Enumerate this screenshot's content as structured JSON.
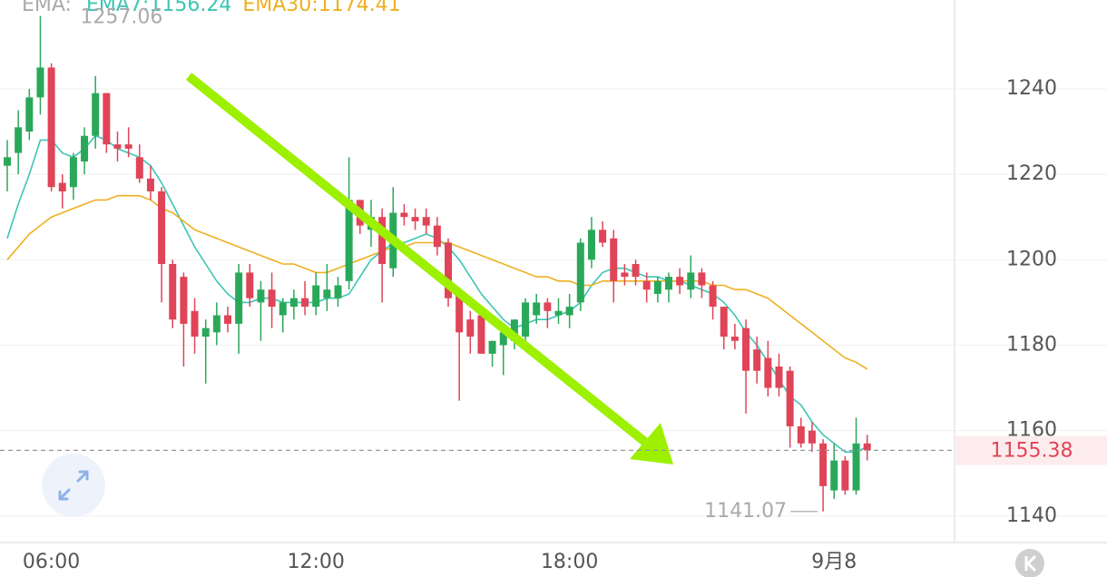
{
  "chart_data": {
    "type": "candlestick",
    "legend_title": "EMA:",
    "legend_separator": ":",
    "categories": [
      null,
      null,
      null,
      null,
      "06:00",
      null,
      null,
      null,
      null,
      null,
      null,
      null,
      null,
      null,
      null,
      null,
      null,
      null,
      null,
      null,
      null,
      null,
      null,
      null,
      null,
      null,
      null,
      null,
      "12:00",
      null,
      null,
      null,
      null,
      null,
      null,
      null,
      null,
      null,
      null,
      null,
      null,
      null,
      null,
      null,
      null,
      null,
      null,
      null,
      null,
      null,
      null,
      "18:00",
      null,
      null,
      null,
      null,
      null,
      null,
      null,
      null,
      null,
      null,
      null,
      null,
      null,
      null,
      null,
      null,
      null,
      null,
      null,
      null,
      null,
      null,
      null,
      "9月8",
      null,
      null,
      null
    ],
    "open": [
      1222,
      1225,
      1230,
      1238,
      1245,
      1218,
      1217,
      1223,
      1229,
      1239,
      1227,
      1227,
      1224,
      1219,
      1216,
      1199,
      1196,
      1188,
      1182,
      1183,
      1187,
      1185,
      1197,
      1190,
      1193,
      1187,
      1189,
      1191,
      1189,
      1191,
      1191,
      1195,
      1214,
      1207,
      1210,
      1198,
      1211,
      1210,
      1210,
      1208,
      1204,
      1192,
      1186,
      1187,
      1178,
      1180,
      1181,
      1182,
      1187,
      1190,
      1187,
      1187,
      1190,
      1200,
      1207,
      1205,
      1197,
      1199,
      1195,
      1192,
      1193,
      1196,
      1193,
      1197,
      1194,
      1189,
      1182,
      1184,
      1179,
      1177,
      1175,
      1174,
      1161,
      1160,
      1157,
      1146,
      1153,
      1146,
      1157
    ],
    "high": [
      1228,
      1235,
      1240,
      1257.06,
      1246,
      1220,
      1225,
      1231,
      1243,
      1239,
      1230,
      1231,
      1227,
      1222,
      1217,
      1200,
      1197,
      1191,
      1186,
      1190,
      1189,
      1199,
      1199,
      1195,
      1197,
      1191,
      1193,
      1195,
      1197,
      1199,
      1196,
      1224,
      1214,
      1214,
      1212,
      1217,
      1213,
      1212,
      1212,
      1210,
      1205,
      1193,
      1188,
      1188,
      1181,
      1183,
      1186,
      1191,
      1192,
      1191,
      1191,
      1192,
      1205,
      1210,
      1209,
      1207,
      1199,
      1200,
      1197,
      1196,
      1197,
      1198,
      1201,
      1198,
      1195,
      1189,
      1185,
      1186,
      1182,
      1181,
      1178,
      1175,
      1163,
      1162,
      1158,
      1157,
      1154,
      1163,
      1159
    ],
    "low": [
      1216,
      1220,
      1228,
      1234,
      1216,
      1212,
      1214,
      1220,
      1226,
      1225,
      1223,
      1224,
      1218,
      1214,
      1190,
      1184,
      1175,
      1178,
      1171,
      1180,
      1183,
      1178,
      1189,
      1181,
      1184,
      1183,
      1186,
      1187,
      1187,
      1188,
      1189,
      1193,
      1206,
      1203,
      1190,
      1196,
      1208,
      1207,
      1206,
      1201,
      1189,
      1167,
      1178,
      1178,
      1175,
      1173,
      1179,
      1179,
      1185,
      1184,
      1185,
      1184,
      1188,
      1198,
      1203,
      1190,
      1194,
      1194,
      1190,
      1190,
      1190,
      1192,
      1191,
      1191,
      1186,
      1179,
      1179,
      1164,
      1171,
      1168,
      1168,
      1156,
      1156,
      1155,
      1141.07,
      1144,
      1145,
      1145,
      1153
    ],
    "close": [
      1224,
      1231,
      1238,
      1245,
      1217,
      1216,
      1224,
      1229,
      1239,
      1227,
      1226,
      1226,
      1219,
      1216,
      1199,
      1186,
      1185,
      1182,
      1184,
      1187,
      1185,
      1197,
      1191,
      1193,
      1189,
      1190,
      1191,
      1189,
      1194,
      1193,
      1194,
      1214,
      1208,
      1210,
      1199,
      1211,
      1210,
      1209,
      1208,
      1203,
      1191,
      1183,
      1182,
      1178,
      1181,
      1183,
      1186,
      1190,
      1190,
      1188,
      1188,
      1189,
      1204,
      1207,
      1204,
      1195,
      1196,
      1196,
      1193,
      1195,
      1196,
      1194,
      1197,
      1194,
      1189,
      1182,
      1181,
      1174,
      1174,
      1170,
      1170,
      1161,
      1157,
      1157,
      1147,
      1153,
      1146,
      1157,
      1155.38
    ],
    "up_color": "#2aa85a",
    "down_color": "#e04458",
    "series": [
      {
        "name": "EMA7",
        "color": "#3cc5b5",
        "values": [
          1205,
          1213,
          1220,
          1228,
          1228,
          1225,
          1224,
          1226,
          1229,
          1228,
          1226,
          1225,
          1224,
          1222,
          1218,
          1213,
          1208,
          1203,
          1199,
          1195,
          1192,
          1190,
          1190,
          1191,
          1191,
          1190,
          1190,
          1190,
          1190,
          1191,
          1191,
          1192,
          1196,
          1200,
          1202,
          1204,
          1204,
          1205,
          1206,
          1205,
          1203,
          1200,
          1196,
          1192,
          1189,
          1186,
          1184,
          1185,
          1186,
          1186,
          1187,
          1188,
          1190,
          1194,
          1197,
          1198,
          1198,
          1197,
          1196,
          1196,
          1195,
          1195,
          1194,
          1193,
          1192,
          1190,
          1187,
          1183,
          1180,
          1176,
          1172,
          1168,
          1166,
          1162,
          1159,
          1157,
          1155,
          1155,
          1156.24
        ]
      },
      {
        "name": "EMA30",
        "color": "#eeb021",
        "values": [
          1200,
          1203,
          1206,
          1208,
          1210,
          1211,
          1212,
          1213,
          1214,
          1214,
          1215,
          1215,
          1215,
          1214,
          1212,
          1211,
          1209,
          1207,
          1206,
          1205,
          1204,
          1203,
          1202,
          1201,
          1200,
          1199,
          1199,
          1198,
          1197,
          1197,
          1198,
          1199,
          1200,
          1201,
          1202,
          1203,
          1203,
          1204,
          1204,
          1204,
          1204,
          1203,
          1202,
          1201,
          1200,
          1199,
          1198,
          1197,
          1196,
          1196,
          1195,
          1195,
          1194,
          1194,
          1195,
          1195,
          1195,
          1195,
          1195,
          1195,
          1195,
          1195,
          1195,
          1195,
          1194,
          1194,
          1193,
          1193,
          1192,
          1191,
          1189,
          1187,
          1185,
          1183,
          1181,
          1179,
          1177,
          1176,
          1174.41
        ]
      }
    ],
    "ylim": [
      1133.8,
      1260.8
    ],
    "yticks": [
      1140,
      1160,
      1180,
      1200,
      1220,
      1240
    ],
    "grid": true
  }
}
